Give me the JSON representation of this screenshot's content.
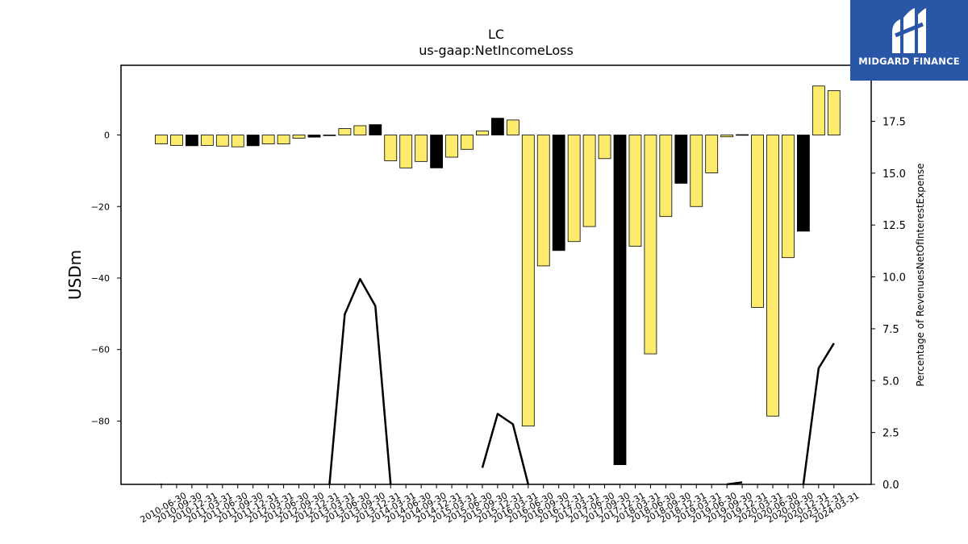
{
  "chart_data": {
    "type": "bar",
    "title": "LC",
    "subtitle": "us-gaap:NetIncomeLoss",
    "ylabel": "USDm",
    "y2label": "Percentage of RevenuesNetOfInterestExpense",
    "ylim": [
      -97.7,
      19.5
    ],
    "y2lim": [
      0.0,
      20.2
    ],
    "yticks": [
      0,
      -20,
      -40,
      -60,
      -80
    ],
    "y2ticks": [
      0.0,
      2.5,
      5.0,
      7.5,
      10.0,
      12.5,
      15.0,
      17.5
    ],
    "categories": [
      "2010-06-30",
      "2010-09-30",
      "2010-12-31",
      "2011-03-31",
      "2011-06-30",
      "2011-09-30",
      "2011-12-31",
      "2012-03-31",
      "2012-06-30",
      "2012-09-30",
      "2012-12-31",
      "2013-03-31",
      "2013-06-30",
      "2013-09-30",
      "2013-12-31",
      "2014-03-31",
      "2014-06-30",
      "2014-09-30",
      "2014-12-31",
      "2015-03-31",
      "2015-06-30",
      "2015-09-30",
      "2015-12-31",
      "2016-03-31",
      "2016-06-30",
      "2016-09-30",
      "2016-12-31",
      "2017-03-31",
      "2017-06-30",
      "2017-09-30",
      "2017-12-31",
      "2018-03-31",
      "2018-06-30",
      "2018-09-30",
      "2018-12-31",
      "2019-03-31",
      "2019-06-30",
      "2019-09-30",
      "2019-12-31",
      "2020-03-31",
      "2020-06-30",
      "2020-09-30",
      "2020-12-31",
      "2023-12-31",
      "2024-03-31"
    ],
    "series": [
      {
        "name": "",
        "values": [
          -2.5,
          -2.9,
          -3.0,
          -2.9,
          -3.1,
          -3.3,
          -3.0,
          -2.5,
          -2.5,
          -0.9,
          -0.6,
          -0.1,
          1.8,
          2.6,
          2.9,
          -7.2,
          -9.2,
          -7.4,
          -9.2,
          -6.2,
          -4.0,
          1.1,
          4.7,
          4.2,
          -81.4,
          -36.6,
          -32.3,
          -29.8,
          -25.6,
          -6.6,
          -92.2,
          -31.1,
          -61.2,
          -22.8,
          -13.5,
          -20.0,
          -10.6,
          -0.5,
          0.1,
          -48.2,
          -78.6,
          -34.3,
          -26.9,
          13.7,
          12.4
        ],
        "highlight": [
          false,
          false,
          true,
          false,
          false,
          false,
          true,
          false,
          false,
          false,
          true,
          false,
          false,
          false,
          true,
          false,
          false,
          false,
          true,
          false,
          false,
          false,
          true,
          false,
          false,
          false,
          true,
          false,
          false,
          false,
          true,
          false,
          false,
          false,
          true,
          false,
          false,
          false,
          true,
          false,
          false,
          false,
          true,
          false,
          false
        ],
        "color": "#fdeb6e",
        "highlight_color": "#000000"
      },
      {
        "name": "",
        "type": "line",
        "axis": "right",
        "color": "#000000",
        "values": [
          0.0,
          null,
          null,
          null,
          null,
          null,
          null,
          null,
          null,
          null,
          null,
          0.0,
          8.2,
          9.9,
          8.6,
          0.0,
          null,
          null,
          null,
          null,
          null,
          0.8,
          3.4,
          2.9,
          0.0,
          null,
          null,
          null,
          null,
          null,
          null,
          null,
          null,
          null,
          null,
          null,
          null,
          0.0,
          0.1,
          null,
          null,
          null,
          0.0,
          5.6,
          6.8
        ]
      }
    ]
  },
  "logo": {
    "text": "MIDGARD FINANCE"
  }
}
